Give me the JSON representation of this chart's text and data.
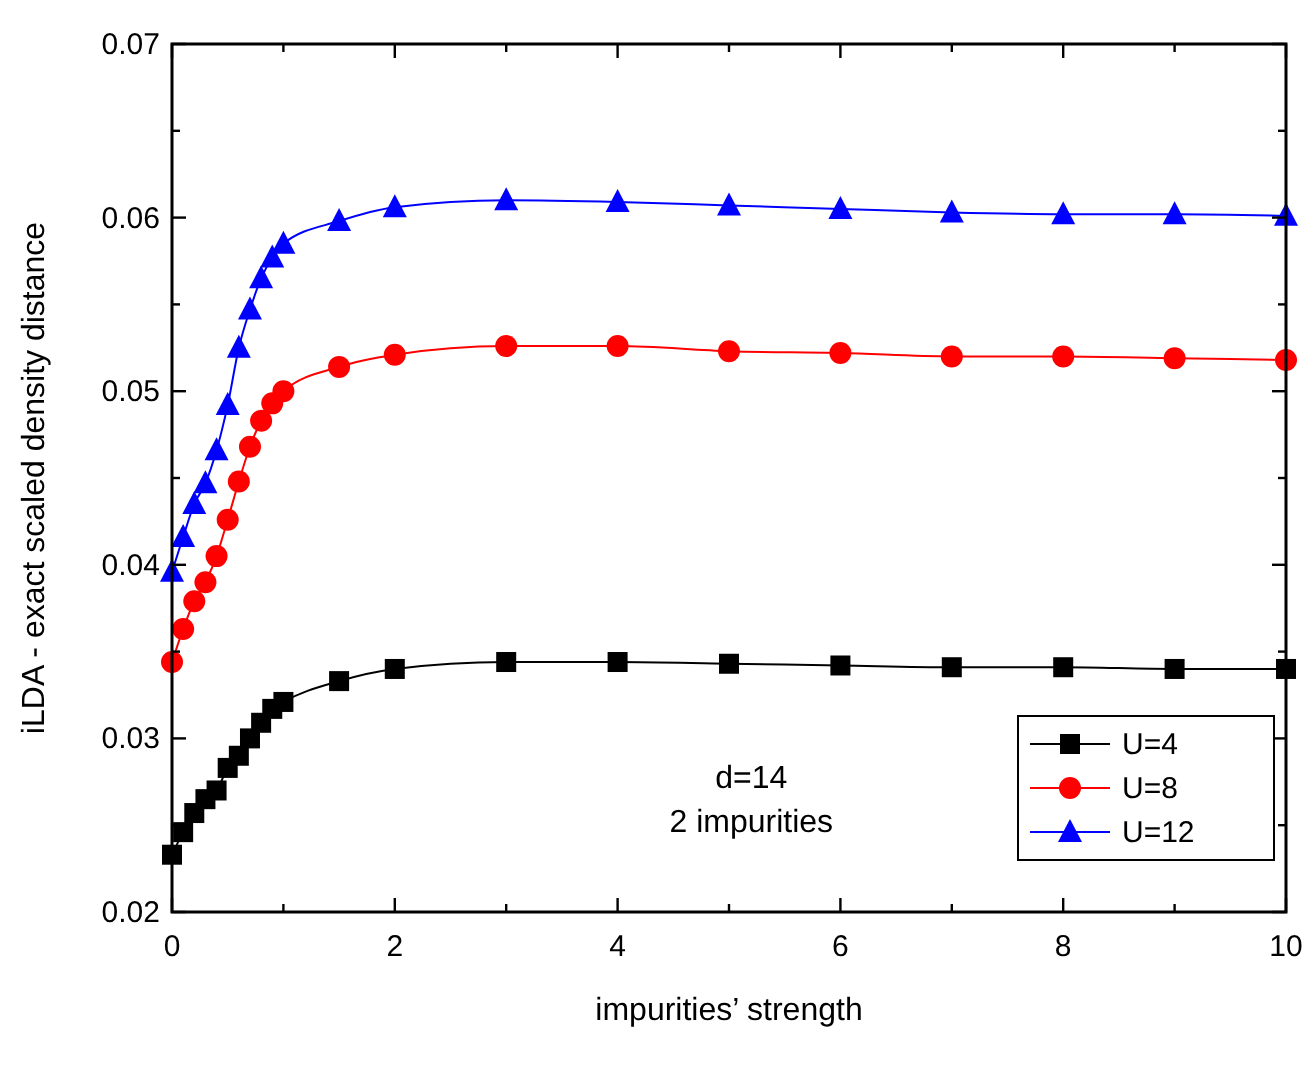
{
  "chart_data": {
    "type": "line",
    "xlabel": "impurities’ strength",
    "ylabel": "iLDA - exact scaled density distance",
    "x": [
      0,
      0.1,
      0.2,
      0.3,
      0.4,
      0.5,
      0.6,
      0.7,
      0.8,
      0.9,
      1,
      1.5,
      2,
      3,
      4,
      5,
      6,
      7,
      8,
      9,
      10
    ],
    "series": [
      {
        "name": "U=4",
        "color": "#000000",
        "marker": "square",
        "values": [
          0.0233,
          0.0246,
          0.0257,
          0.0265,
          0.027,
          0.0283,
          0.029,
          0.03,
          0.0309,
          0.0317,
          0.0321,
          0.0333,
          0.034,
          0.0344,
          0.0344,
          0.0343,
          0.0342,
          0.0341,
          0.0341,
          0.034,
          0.034
        ]
      },
      {
        "name": "U=8",
        "color": "#ff0000",
        "marker": "circle",
        "values": [
          0.0344,
          0.0363,
          0.0379,
          0.039,
          0.0405,
          0.0426,
          0.0448,
          0.0468,
          0.0483,
          0.0493,
          0.05,
          0.0514,
          0.0521,
          0.0526,
          0.0526,
          0.0523,
          0.0522,
          0.052,
          0.052,
          0.0519,
          0.0518
        ]
      },
      {
        "name": "U=12",
        "color": "#0000ff",
        "marker": "triangle",
        "values": [
          0.0396,
          0.0416,
          0.0435,
          0.0447,
          0.0466,
          0.0492,
          0.0525,
          0.0547,
          0.0565,
          0.0577,
          0.0585,
          0.0598,
          0.0606,
          0.061,
          0.0609,
          0.0607,
          0.0605,
          0.0603,
          0.0602,
          0.0602,
          0.0601
        ]
      }
    ],
    "xlim": [
      0,
      10
    ],
    "xticks": [
      0,
      {
        "value": 1,
        "label": null
      },
      2,
      {
        "value": 3,
        "label": null
      },
      4,
      {
        "value": 5,
        "label": null
      },
      6,
      {
        "value": 7,
        "label": null
      },
      8,
      {
        "value": 9,
        "label": null
      },
      10
    ],
    "ylim": [
      0.02,
      0.07
    ],
    "yticks": [
      0.02,
      {
        "value": 0.025,
        "label": null
      },
      0.03,
      {
        "value": 0.035,
        "label": null
      },
      0.04,
      {
        "value": 0.045,
        "label": null
      },
      0.05,
      {
        "value": 0.055,
        "label": null
      },
      0.06,
      {
        "value": 0.065,
        "label": null
      },
      0.07
    ],
    "grid": false,
    "legend": "bottom right",
    "line_style": "solid",
    "annotations": [
      "d=14",
      "2 impurities"
    ]
  }
}
